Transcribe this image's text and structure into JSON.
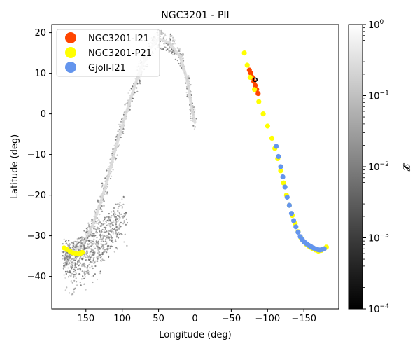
{
  "chart_data": {
    "type": "scatter",
    "title": "NGC3201 - PII",
    "xlabel": "Longitude (deg)",
    "ylabel": "Latitude (deg)",
    "xlim": [
      197,
      -198
    ],
    "ylim": [
      -48,
      22
    ],
    "x_ticks": [
      {
        "value": 150,
        "label": "150"
      },
      {
        "value": 100,
        "label": "100"
      },
      {
        "value": 50,
        "label": "50"
      },
      {
        "value": 0,
        "label": "0"
      },
      {
        "value": -50,
        "label": "−50"
      },
      {
        "value": -100,
        "label": "−100"
      },
      {
        "value": -150,
        "label": "−150"
      }
    ],
    "y_ticks": [
      {
        "value": 20,
        "label": "20"
      },
      {
        "value": 10,
        "label": "10"
      },
      {
        "value": 0,
        "label": "0"
      },
      {
        "value": -10,
        "label": "−10"
      },
      {
        "value": -20,
        "label": "−20"
      },
      {
        "value": -30,
        "label": "−30"
      },
      {
        "value": -40,
        "label": "−40"
      }
    ],
    "grid": false,
    "legend": {
      "position": "upper-left",
      "entries": [
        {
          "name": "NGC3201-I21",
          "color": "#ff4500"
        },
        {
          "name": "NGC3201-P21",
          "color": "#ffff00"
        },
        {
          "name": "Gjoll-I21",
          "color": "#6495ed"
        }
      ]
    },
    "colorbar": {
      "label": "𝓛",
      "scale": "log",
      "range": [
        0.0001,
        1
      ],
      "colormap": "grey",
      "ticks": [
        {
          "value": 1,
          "label": "10^0"
        },
        {
          "value": 0.1,
          "label": "10^-1"
        },
        {
          "value": 0.01,
          "label": "10^-2"
        },
        {
          "value": 0.001,
          "label": "10^-3"
        },
        {
          "value": 0.0001,
          "label": "10^-4"
        }
      ]
    },
    "model_stream": {
      "description_points": [
        [
          0,
          -2
        ],
        [
          5,
          2
        ],
        [
          10,
          8
        ],
        [
          20,
          14
        ],
        [
          35,
          17.5
        ],
        [
          50,
          18.5
        ],
        [
          62,
          16
        ],
        [
          75,
          11
        ],
        [
          88,
          4
        ],
        [
          100,
          -3
        ],
        [
          110,
          -9
        ],
        [
          120,
          -16
        ],
        [
          130,
          -22
        ],
        [
          140,
          -27
        ],
        [
          150,
          -31
        ],
        [
          160,
          -33
        ],
        [
          170,
          -34
        ],
        [
          180,
          -35
        ]
      ],
      "wrap_points": [
        [
          180,
          -35
        ],
        [
          170,
          -36
        ],
        [
          160,
          -36
        ],
        [
          150,
          -35
        ],
        [
          140,
          -33
        ],
        [
          130,
          -31
        ],
        [
          120,
          -29
        ],
        [
          110,
          -27
        ],
        [
          95,
          -24
        ]
      ],
      "color": "#9a9a9a"
    },
    "series": [
      {
        "name": "NGC3201-I21",
        "color": "#ff4500",
        "x": [
          -75,
          -77,
          -79,
          -81,
          -83,
          -85,
          -87
        ],
        "y": [
          10.8,
          10,
          9,
          8,
          7,
          6,
          5
        ]
      },
      {
        "name": "NGC3201-P21",
        "color": "#ffff00",
        "x": [
          -68,
          -72,
          -76,
          -82,
          -88,
          -94,
          -100,
          -106,
          -110,
          -114,
          -118,
          -122,
          -126,
          -130,
          -134,
          -138,
          -142,
          -146,
          -150,
          -154,
          -158,
          -162,
          -166,
          -170,
          -174,
          -178,
          -181
        ],
        "y": [
          15,
          12,
          9,
          6,
          3,
          0,
          -3,
          -6,
          -8.5,
          -11,
          -14,
          -17,
          -20,
          -22.5,
          -25,
          -27,
          -29,
          -30.5,
          -31.5,
          -32.2,
          -32.8,
          -33.2,
          -33.5,
          -33.8,
          -33.6,
          -33.2,
          -32.8
        ]
      },
      {
        "name": "NGC3201-P21",
        "color": "#ffff00",
        "x": [
          180,
          176,
          172,
          168,
          164,
          160,
          157,
          155
        ],
        "y": [
          -33,
          -33.4,
          -33.8,
          -34.2,
          -34.4,
          -34.5,
          -34.3,
          -34.1
        ]
      },
      {
        "name": "Gjoll-I21",
        "color": "#6495ed",
        "x": [
          -112,
          -115,
          -118,
          -121,
          -124,
          -127,
          -130,
          -133,
          -136,
          -139,
          -142,
          -145,
          -148,
          -151,
          -154,
          -157,
          -160,
          -163,
          -166,
          -169,
          -172,
          -175,
          -178
        ],
        "y": [
          -8,
          -10.5,
          -13,
          -15.5,
          -18,
          -20.5,
          -22.5,
          -24.5,
          -26.3,
          -27.8,
          -29.1,
          -30.2,
          -31,
          -31.6,
          -32,
          -32.4,
          -32.7,
          -33,
          -33.2,
          -33.4,
          -33.5,
          -33.4,
          -33.2
        ]
      }
    ],
    "cluster_marker": {
      "x": -83,
      "y": 8.4,
      "color": "#000000"
    }
  }
}
